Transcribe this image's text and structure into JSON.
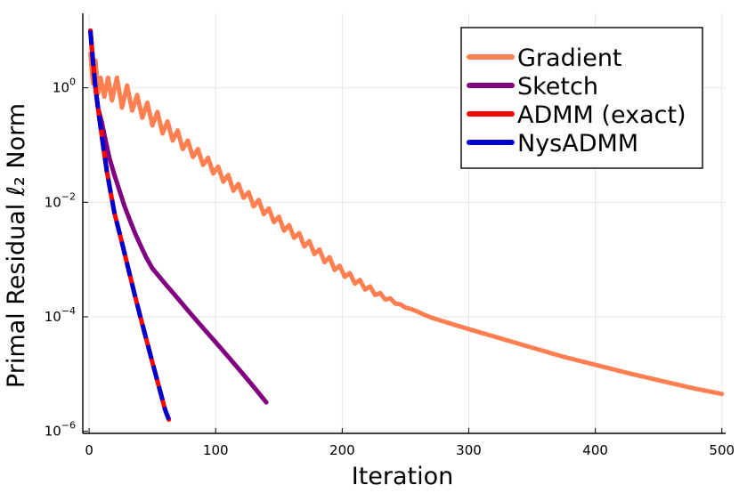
{
  "chart_data": {
    "type": "line",
    "xlabel": "Iteration",
    "ylabel": "Primal Residual ℓ₂ Norm",
    "yscale": "log",
    "xlim": [
      -5,
      503
    ],
    "ylim": [
      9.2e-07,
      20
    ],
    "xticks": [
      0,
      100,
      200,
      300,
      400,
      500
    ],
    "yticks": [
      1e-06,
      0.0001,
      0.01,
      1
    ],
    "ytick_exponents": [
      "−6",
      "−4",
      "−2",
      "0"
    ],
    "ytick_base": "10",
    "grid": true,
    "legend_position": "top-right",
    "series": [
      {
        "name": "Gradient",
        "color": "#ff7f50",
        "style": "solid",
        "points": [
          [
            1,
            4.0
          ],
          [
            3,
            1.2
          ],
          [
            5,
            3.0
          ],
          [
            7,
            0.8
          ],
          [
            9,
            1.5
          ],
          [
            12,
            0.7
          ],
          [
            15,
            1.5
          ],
          [
            18,
            0.6
          ],
          [
            22,
            1.5
          ],
          [
            26,
            0.45
          ],
          [
            30,
            1.1
          ],
          [
            34,
            0.4
          ],
          [
            38,
            0.75
          ],
          [
            42,
            0.3
          ],
          [
            46,
            0.55
          ],
          [
            50,
            0.22
          ],
          [
            54,
            0.38
          ],
          [
            58,
            0.16
          ],
          [
            62,
            0.26
          ],
          [
            66,
            0.12
          ],
          [
            70,
            0.18
          ],
          [
            74,
            0.085
          ],
          [
            78,
            0.12
          ],
          [
            82,
            0.062
          ],
          [
            86,
            0.085
          ],
          [
            90,
            0.045
          ],
          [
            94,
            0.06
          ],
          [
            98,
            0.032
          ],
          [
            102,
            0.042
          ],
          [
            106,
            0.023
          ],
          [
            110,
            0.03
          ],
          [
            114,
            0.016
          ],
          [
            118,
            0.021
          ],
          [
            122,
            0.012
          ],
          [
            126,
            0.015
          ],
          [
            130,
            0.0085
          ],
          [
            134,
            0.011
          ],
          [
            138,
            0.0062
          ],
          [
            142,
            0.0078
          ],
          [
            146,
            0.0045
          ],
          [
            150,
            0.0056
          ],
          [
            154,
            0.0032
          ],
          [
            158,
            0.004
          ],
          [
            162,
            0.0024
          ],
          [
            166,
            0.0029
          ],
          [
            170,
            0.0017
          ],
          [
            174,
            0.0021
          ],
          [
            178,
            0.00125
          ],
          [
            182,
            0.0015
          ],
          [
            186,
            0.0009
          ],
          [
            190,
            0.0011
          ],
          [
            194,
            0.00066
          ],
          [
            198,
            0.00078
          ],
          [
            202,
            0.0005
          ],
          [
            206,
            0.00058
          ],
          [
            210,
            0.00038
          ],
          [
            214,
            0.00044
          ],
          [
            218,
            0.0003
          ],
          [
            222,
            0.00034
          ],
          [
            226,
            0.00024
          ],
          [
            230,
            0.00026
          ],
          [
            234,
            0.0002
          ],
          [
            238,
            0.00021
          ],
          [
            242,
            0.00017
          ],
          [
            246,
            0.000165
          ],
          [
            250,
            0.000145
          ],
          [
            255,
            0.000135
          ],
          [
            260,
            0.000122
          ],
          [
            265,
            0.000108
          ],
          [
            270,
            9.8e-05
          ],
          [
            275,
            9e-05
          ],
          [
            280,
            8.3e-05
          ],
          [
            285,
            7.7e-05
          ],
          [
            290,
            7.1e-05
          ],
          [
            295,
            6.6e-05
          ],
          [
            300,
            6.1e-05
          ],
          [
            325,
            4.2e-05
          ],
          [
            350,
            2.9e-05
          ],
          [
            375,
            2e-05
          ],
          [
            400,
            1.45e-05
          ],
          [
            425,
            1.05e-05
          ],
          [
            450,
            7.8e-06
          ],
          [
            475,
            5.8e-06
          ],
          [
            500,
            4.5e-06
          ]
        ]
      },
      {
        "name": "Sketch",
        "color": "#800080",
        "style": "solid",
        "points": [
          [
            1,
            10
          ],
          [
            3,
            3
          ],
          [
            5,
            1
          ],
          [
            7,
            0.45
          ],
          [
            10,
            0.25
          ],
          [
            13,
            0.12
          ],
          [
            16,
            0.06
          ],
          [
            20,
            0.03
          ],
          [
            24,
            0.016
          ],
          [
            28,
            0.0085
          ],
          [
            32,
            0.005
          ],
          [
            36,
            0.003
          ],
          [
            40,
            0.0019
          ],
          [
            45,
            0.0011
          ],
          [
            50,
            0.0007
          ],
          [
            60,
            0.00038
          ],
          [
            70,
            0.00021
          ],
          [
            80,
            0.000115
          ],
          [
            90,
            6.4e-05
          ],
          [
            100,
            3.6e-05
          ],
          [
            110,
            2e-05
          ],
          [
            120,
            1.1e-05
          ],
          [
            130,
            6e-06
          ],
          [
            140,
            3.2e-06
          ]
        ]
      },
      {
        "name": "ADMM (exact)",
        "color": "#ff0000",
        "style": "solid",
        "points": [
          [
            1,
            10
          ],
          [
            3,
            3
          ],
          [
            5,
            1
          ],
          [
            8,
            0.3
          ],
          [
            11,
            0.1
          ],
          [
            14,
            0.035
          ],
          [
            17,
            0.015
          ],
          [
            20,
            0.0065
          ],
          [
            25,
            0.0024
          ],
          [
            30,
            0.00085
          ],
          [
            35,
            0.0003
          ],
          [
            40,
            0.00011
          ],
          [
            45,
            4.2e-05
          ],
          [
            50,
            1.6e-05
          ],
          [
            55,
            6.2e-06
          ],
          [
            60,
            2.4e-06
          ],
          [
            63,
            1.6e-06
          ]
        ]
      },
      {
        "name": "NysADMM",
        "color": "#0000cd",
        "style": "dashed",
        "points": [
          [
            1,
            10
          ],
          [
            3,
            3
          ],
          [
            5,
            1
          ],
          [
            8,
            0.3
          ],
          [
            11,
            0.1
          ],
          [
            14,
            0.035
          ],
          [
            17,
            0.015
          ],
          [
            20,
            0.0065
          ],
          [
            25,
            0.0024
          ],
          [
            30,
            0.00085
          ],
          [
            35,
            0.0003
          ],
          [
            40,
            0.00011
          ],
          [
            45,
            4.2e-05
          ],
          [
            50,
            1.6e-05
          ],
          [
            55,
            6.2e-06
          ],
          [
            60,
            2.4e-06
          ],
          [
            63,
            1.6e-06
          ]
        ]
      }
    ]
  }
}
